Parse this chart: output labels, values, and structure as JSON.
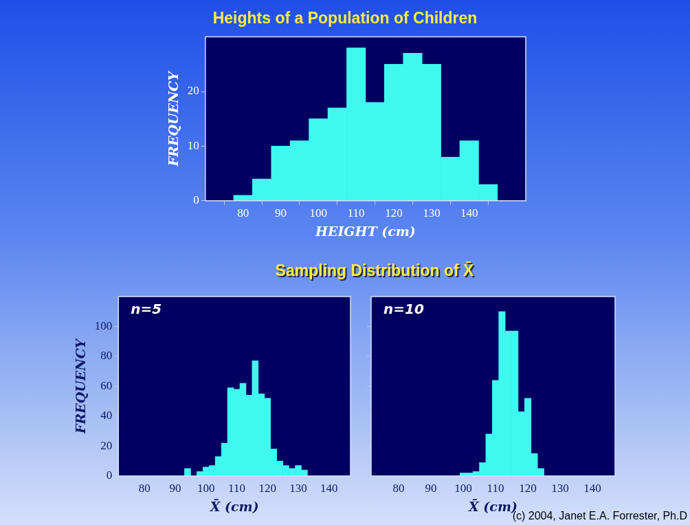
{
  "chart_data": [
    {
      "type": "histogram",
      "title": "Heights of a Population of Children",
      "xlabel": "HEIGHT (cm)",
      "ylabel": "FREQUENCY",
      "bins": [
        77.5,
        82.5,
        87.5,
        92.5,
        97.5,
        102.5,
        107.5,
        112.5,
        117.5,
        122.5,
        127.5,
        132.5,
        137.5,
        142.5,
        147.5
      ],
      "values": [
        1,
        4,
        10,
        11,
        15,
        17,
        28,
        18,
        25,
        27,
        25,
        8,
        11,
        3
      ],
      "color": "#3ff8f0",
      "xlim": [
        70,
        155
      ],
      "xticks": [
        80,
        90,
        100,
        110,
        120,
        130,
        140
      ],
      "ylim": [
        0,
        30
      ],
      "yticks": [
        0,
        10,
        20
      ]
    },
    {
      "type": "histogram",
      "title": "Sampling Distribution of X̄",
      "xlabel": "X̄ (cm)",
      "ylabel": "FREQUENCY",
      "annotations": [
        "n=5"
      ],
      "bins": [
        93,
        95,
        97,
        99,
        101,
        103,
        105,
        107,
        109,
        111,
        113,
        115,
        117,
        119,
        121,
        123,
        125,
        127,
        129,
        131,
        133
      ],
      "values": [
        5,
        0,
        3,
        6,
        7,
        13,
        22,
        59,
        58,
        62,
        54,
        77,
        55,
        52,
        18,
        10,
        7,
        5,
        7,
        4
      ],
      "color": "#3ff8f0",
      "xlim": [
        71.5,
        147
      ],
      "xticks": [
        80,
        90,
        100,
        110,
        120,
        130,
        140
      ],
      "ylim": [
        0,
        120
      ],
      "yticks": [
        0,
        20,
        40,
        60,
        80,
        100
      ]
    },
    {
      "type": "histogram",
      "xlabel": "X̄ (cm)",
      "annotations": [
        "n=10",
        "(c) 2004, Janet E.A. Forrester, Ph.D"
      ],
      "tick_labels": "x",
      "bins": [
        99,
        101,
        103,
        105,
        107,
        109,
        111,
        113,
        115,
        117,
        119,
        121,
        123,
        125
      ],
      "values": [
        2,
        2,
        3,
        9,
        28,
        64,
        110,
        97,
        97,
        43,
        52,
        15,
        5
      ],
      "color": "#3ff8f0",
      "xlim": [
        71.5,
        147
      ],
      "xticks": [
        80,
        90,
        100,
        110,
        120,
        130,
        140
      ],
      "ylim": [
        0,
        120
      ],
      "yticks": [
        {
          "value": 0,
          "label": null
        },
        {
          "value": 20,
          "label": null
        },
        {
          "value": 40,
          "label": null
        },
        {
          "value": 60,
          "label": null
        },
        {
          "value": 80,
          "label": null
        },
        {
          "value": 100,
          "label": null
        }
      ]
    }
  ]
}
